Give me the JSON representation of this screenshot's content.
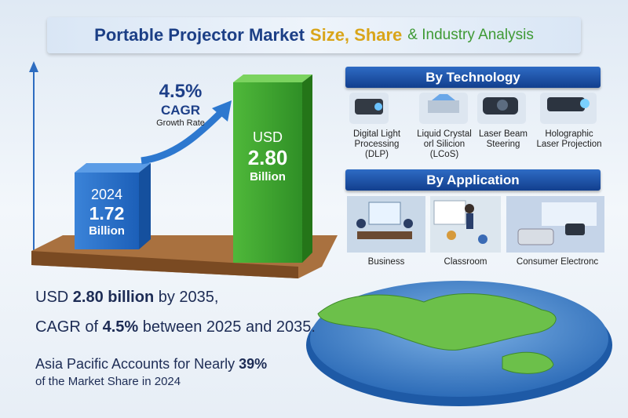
{
  "header": {
    "title": [
      "Portable Projector Market",
      "Size, Share",
      "& Industry Analysis"
    ]
  },
  "growth": {
    "rate": "4.5%",
    "label": "CAGR",
    "sublabel": "Growth Rate"
  },
  "bars": [
    {
      "year": "2024",
      "value": "1.72",
      "unit": "Billion"
    },
    {
      "year": "USD",
      "value": "2.80",
      "unit": "Billion"
    }
  ],
  "technology": {
    "heading": "By Technology",
    "items": [
      "Digital Light Processing (DLP)",
      "Liquid Crystal orl Silicion (LCoS)",
      "Laser Beam Steering",
      "Holographic Laser Projection"
    ]
  },
  "application": {
    "heading": "By Application",
    "items": [
      "Business",
      "Classroom",
      "Consumer Electronc"
    ]
  },
  "stats": [
    [
      "USD",
      "2.80 billion",
      "by 2035,"
    ],
    [
      "CAGR of",
      "4.5%",
      "between 2025 and 2035."
    ],
    [
      "Asia Pacific Accounts for Nearly",
      "39%"
    ],
    [
      "of the Market Share in 2024"
    ]
  ]
}
